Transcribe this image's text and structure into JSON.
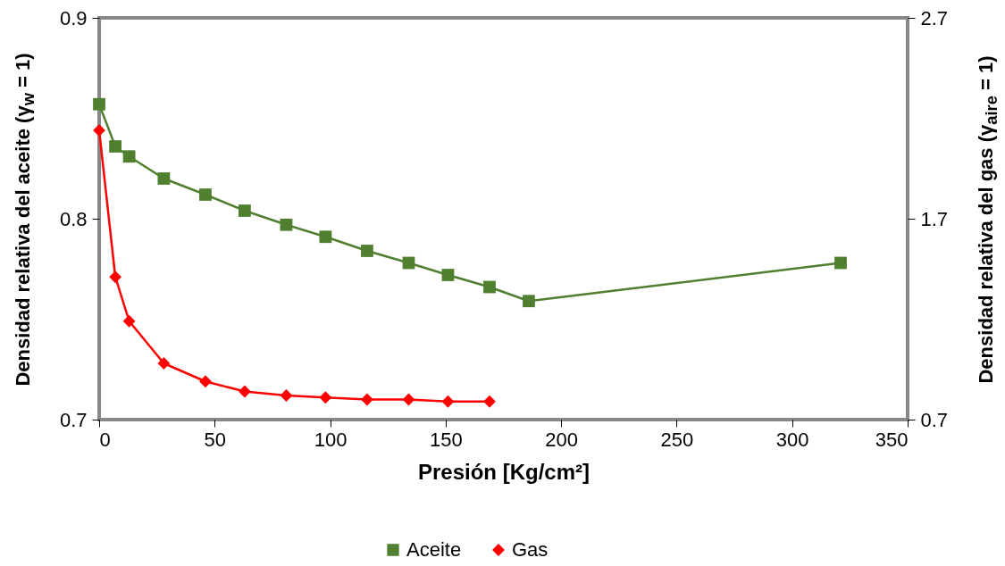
{
  "chart_data": {
    "type": "line",
    "xlabel": "Presión [Kg/cm²]",
    "ylabel": "Densidad relativa del aceite (γ$_{w}$ = 1)",
    "y2label": "Densidad relativa del gas (γ$_{aire}$ = 1)",
    "x": [
      0,
      7,
      13,
      28,
      46,
      63,
      81,
      98,
      116,
      134,
      151,
      169,
      186,
      321
    ],
    "series": [
      {
        "name": "Aceite",
        "color": "#4f7f2f",
        "marker": "square",
        "values": [
          0.857,
          0.836,
          0.831,
          0.82,
          0.812,
          0.804,
          0.797,
          0.791,
          0.784,
          0.778,
          0.772,
          0.766,
          0.759,
          0.778
        ]
      },
      {
        "name": "Gas",
        "color": "#ff0000",
        "marker": "diamond",
        "axis": "y2",
        "values": [
          2.14,
          1.41,
          1.19,
          0.98,
          0.89,
          0.84,
          0.82,
          0.81,
          0.8,
          0.8,
          0.79,
          0.79,
          null,
          null
        ]
      }
    ],
    "xlim": [
      0,
      350
    ],
    "xticks": [
      0,
      50,
      100,
      150,
      200,
      250,
      300,
      350
    ],
    "ylim": [
      0.7,
      0.9
    ],
    "yticks": [
      0.7,
      0.8,
      0.9
    ],
    "y2lim": [
      0.7,
      2.7
    ],
    "y2ticks": [
      0.7,
      1.7,
      2.7
    ],
    "grid": false,
    "legend": "bottom"
  }
}
